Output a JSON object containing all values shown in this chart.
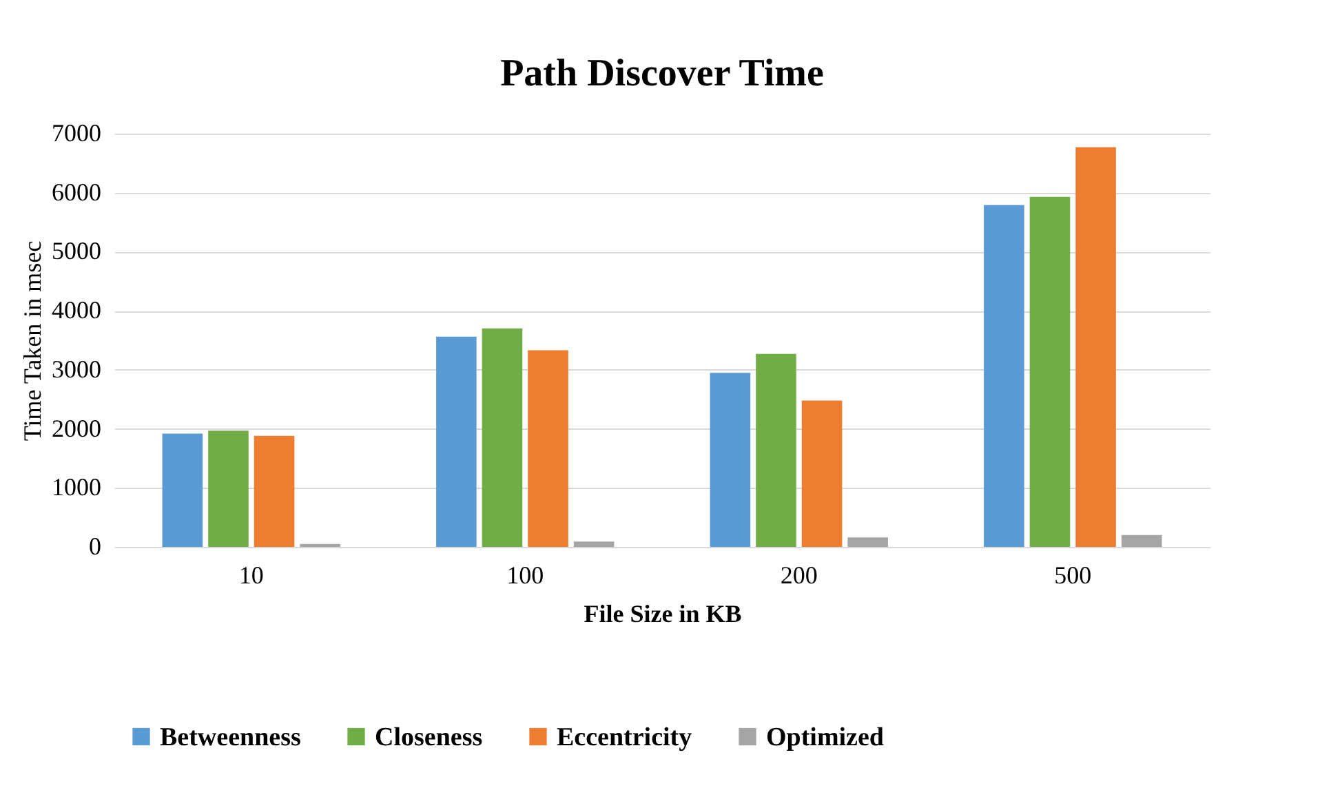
{
  "chart_data": {
    "type": "bar",
    "title": "Path Discover Time",
    "xlabel": "File Size in KB",
    "ylabel": "Time Taken in msec",
    "categories": [
      "10",
      "100",
      "200",
      "500"
    ],
    "series": [
      {
        "name": "Betweenness",
        "color": "#5b9bd5",
        "values": [
          1920,
          3560,
          2950,
          5790
        ]
      },
      {
        "name": "Closeness",
        "color": "#70ad47",
        "values": [
          1970,
          3700,
          3270,
          5930
        ]
      },
      {
        "name": "Eccentricity",
        "color": "#ed7d31",
        "values": [
          1880,
          3330,
          2480,
          6770
        ]
      },
      {
        "name": "Optimized",
        "color": "#a5a5a5",
        "values": [
          50,
          90,
          160,
          200
        ]
      }
    ],
    "ylim": [
      0,
      7000
    ],
    "yticks": [
      0,
      1000,
      2000,
      3000,
      4000,
      5000,
      6000,
      7000
    ],
    "grid": "y",
    "legend": "bottom"
  }
}
